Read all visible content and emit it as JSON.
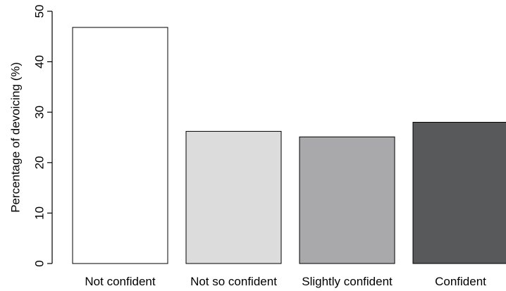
{
  "chart_data": {
    "type": "bar",
    "categories": [
      "Not confident",
      "Not so confident",
      "Slightly confident",
      "Confident"
    ],
    "values": [
      46.8,
      26.2,
      25.1,
      28.0
    ],
    "colors": [
      "#ffffff",
      "#dcdcdc",
      "#a9a9ab",
      "#58595b"
    ],
    "ylabel": "Percentage of devoicing (%)",
    "ylim": [
      0,
      50
    ],
    "yticks": [
      0,
      10,
      20,
      30,
      40,
      50
    ],
    "grid": false,
    "legend": "none"
  }
}
